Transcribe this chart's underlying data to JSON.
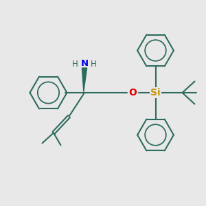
{
  "bg_color": "#e8e8e8",
  "bond_color": "#2d6b5e",
  "n_color": "#0000ee",
  "o_color": "#dd0000",
  "si_color": "#c8960a",
  "h_color": "#2d6b5e",
  "line_width": 1.5,
  "figsize": [
    3.0,
    3.0
  ],
  "dpi": 100,
  "xlim": [
    0,
    10
  ],
  "ylim": [
    0,
    10
  ]
}
